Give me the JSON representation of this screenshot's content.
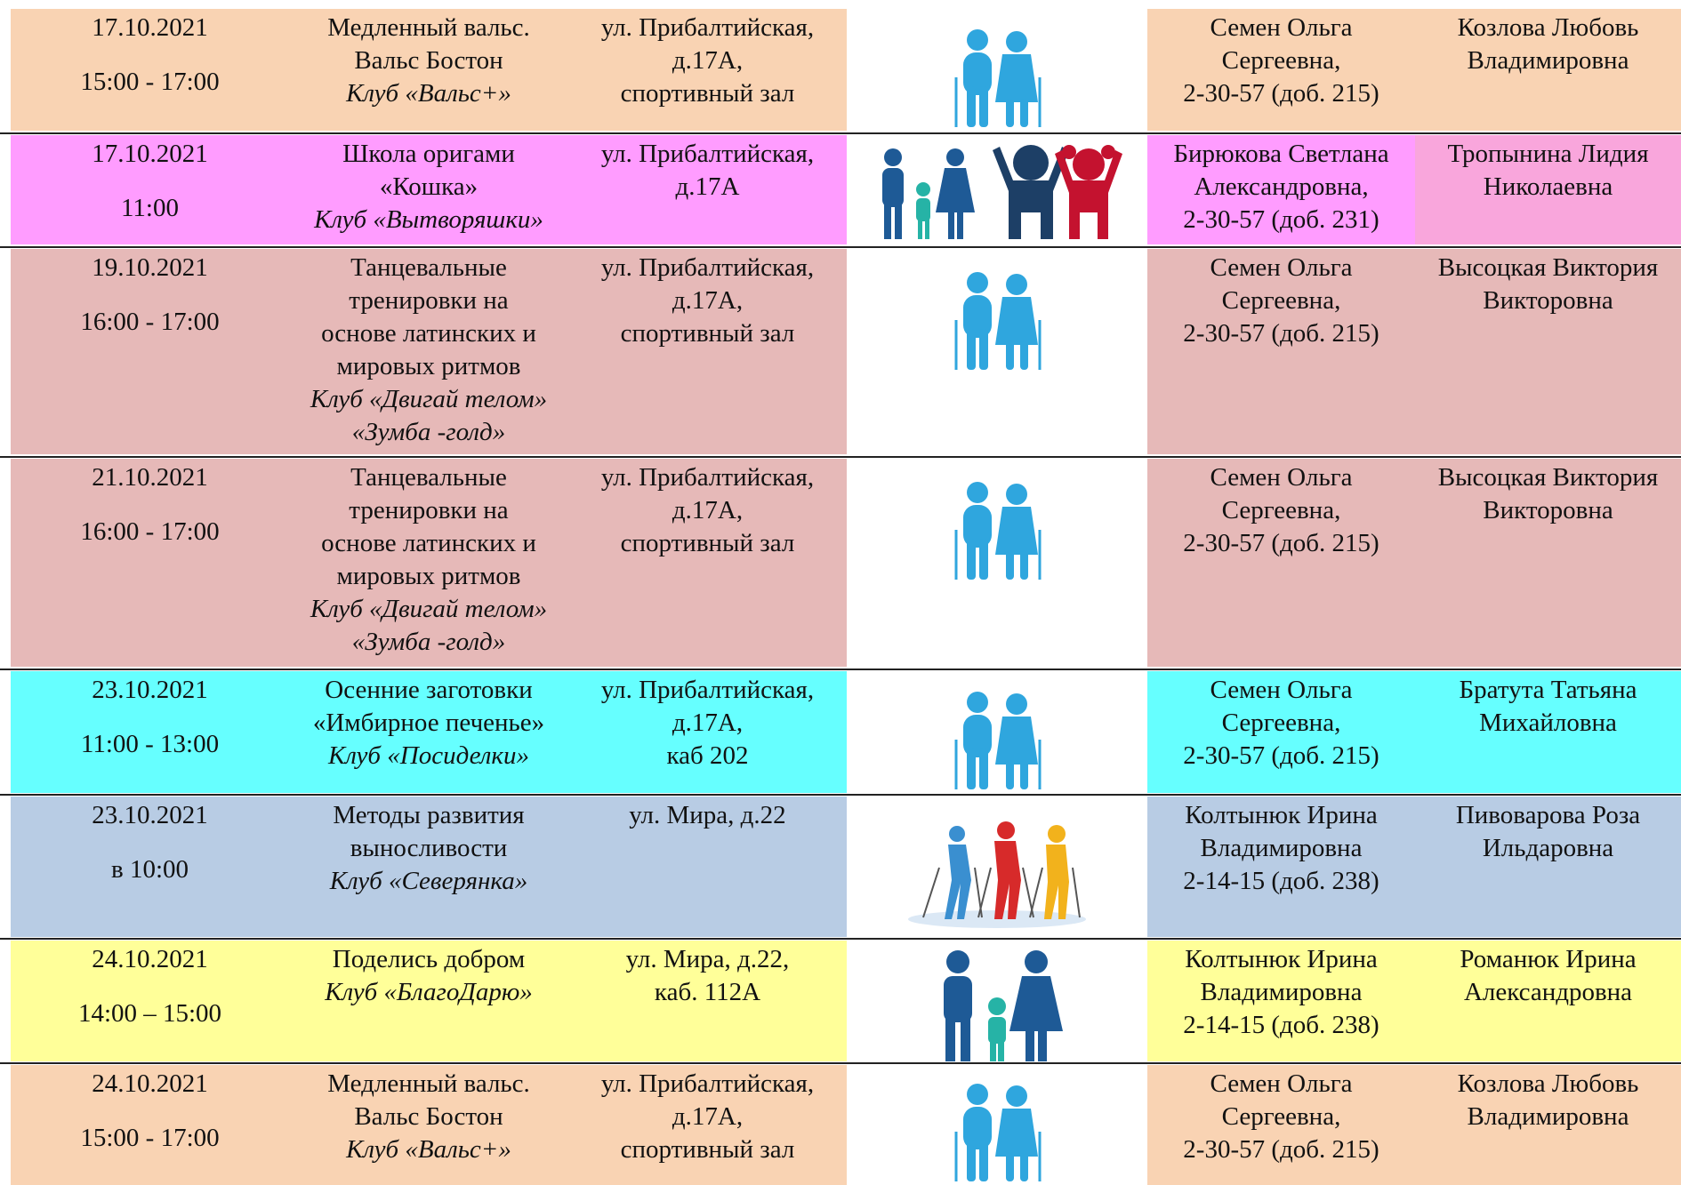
{
  "rows": [
    {
      "date": "17.10.2021",
      "time": "15:00 - 17:00",
      "title": [
        "Медленный вальс.",
        "Вальс Бостон"
      ],
      "club": [
        "Клуб «Вальс+»"
      ],
      "address": [
        "ул. Прибалтийская,",
        "д.17А,",
        "спортивный зал"
      ],
      "contact": [
        "Семен Ольга",
        "Сергеевна,",
        "2-30-57 (доб. 215)"
      ],
      "responsible": [
        "Козлова Любовь",
        "Владимировна"
      ]
    },
    {
      "date": "17.10.2021",
      "time": "11:00",
      "title": [
        "Школа оригами",
        "«Кошка»"
      ],
      "club": [
        "Клуб «Вытворяшки»"
      ],
      "address": [
        "ул. Прибалтийская,",
        "д.17А"
      ],
      "contact": [
        "Бирюкова Светлана",
        "Александровна,",
        "2-30-57 (доб. 231)"
      ],
      "responsible": [
        "Тропынина Лидия",
        "Николаевна"
      ]
    },
    {
      "date": "19.10.2021",
      "time": "16:00 - 17:00",
      "title": [
        "Танцевальные",
        "тренировки на",
        "основе латинских и",
        "мировых ритмов"
      ],
      "club": [
        "Клуб «Двигай телом»",
        "«Зумба -голд»"
      ],
      "address": [
        "ул. Прибалтийская,",
        "д.17А,",
        "спортивный зал"
      ],
      "contact": [
        "Семен Ольга",
        "Сергеевна,",
        "2-30-57 (доб. 215)"
      ],
      "responsible": [
        "Высоцкая Виктория",
        "Викторовна"
      ]
    },
    {
      "date": "21.10.2021",
      "time": "16:00 - 17:00",
      "title": [
        "Танцевальные",
        "тренировки на",
        "основе латинских и",
        "мировых ритмов"
      ],
      "club": [
        "Клуб «Двигай телом»",
        "«Зумба -голд»"
      ],
      "address": [
        "ул. Прибалтийская,",
        "д.17А,",
        "спортивный зал"
      ],
      "contact": [
        "Семен Ольга",
        "Сергеевна,",
        "2-30-57 (доб. 215)"
      ],
      "responsible": [
        "Высоцкая Виктория",
        "Викторовна"
      ]
    },
    {
      "date": "23.10.2021",
      "time": "11:00 - 13:00",
      "title": [
        "Осенние заготовки",
        "«Имбирное печенье»"
      ],
      "club": [
        "Клуб «Посиделки»"
      ],
      "address": [
        "ул. Прибалтийская,",
        "д.17А,",
        "каб 202"
      ],
      "contact": [
        "Семен Ольга",
        "Сергеевна,",
        "2-30-57 (доб. 215)"
      ],
      "responsible": [
        "Братута Татьяна",
        "Михайловна"
      ]
    },
    {
      "date": "23.10.2021",
      "time": "в 10:00",
      "title": [
        "Методы развития",
        "выносливости"
      ],
      "club": [
        "Клуб «Северянка»"
      ],
      "address": [
        "ул. Мира, д.22"
      ],
      "contact": [
        "Колтынюк Ирина",
        "Владимировна",
        "2-14-15 (доб. 238)"
      ],
      "responsible": [
        "Пивоварова Роза",
        "Ильдаровна"
      ]
    },
    {
      "date": "24.10.2021",
      "time": "14:00 – 15:00",
      "title": [
        "Поделись добром"
      ],
      "club": [
        "Клуб «БлагоДарю»"
      ],
      "address": [
        "ул. Мира, д.22,",
        "каб. 112А"
      ],
      "contact": [
        "Колтынюк Ирина",
        "Владимировна",
        "2-14-15 (доб. 238)"
      ],
      "responsible": [
        "Романюк Ирина",
        "Александровна"
      ]
    },
    {
      "date": "24.10.2021",
      "time": "15:00 - 17:00",
      "title": [
        "Медленный вальс.",
        "Вальс Бостон"
      ],
      "club": [
        "Клуб «Вальс+»"
      ],
      "address": [
        "ул. Прибалтийская,",
        "д.17А,",
        "спортивный зал"
      ],
      "contact": [
        "Семен Ольга",
        "Сергеевна,",
        "2-30-57 (доб. 215)"
      ],
      "responsible": [
        "Козлова Любовь",
        "Владимировна"
      ]
    }
  ]
}
